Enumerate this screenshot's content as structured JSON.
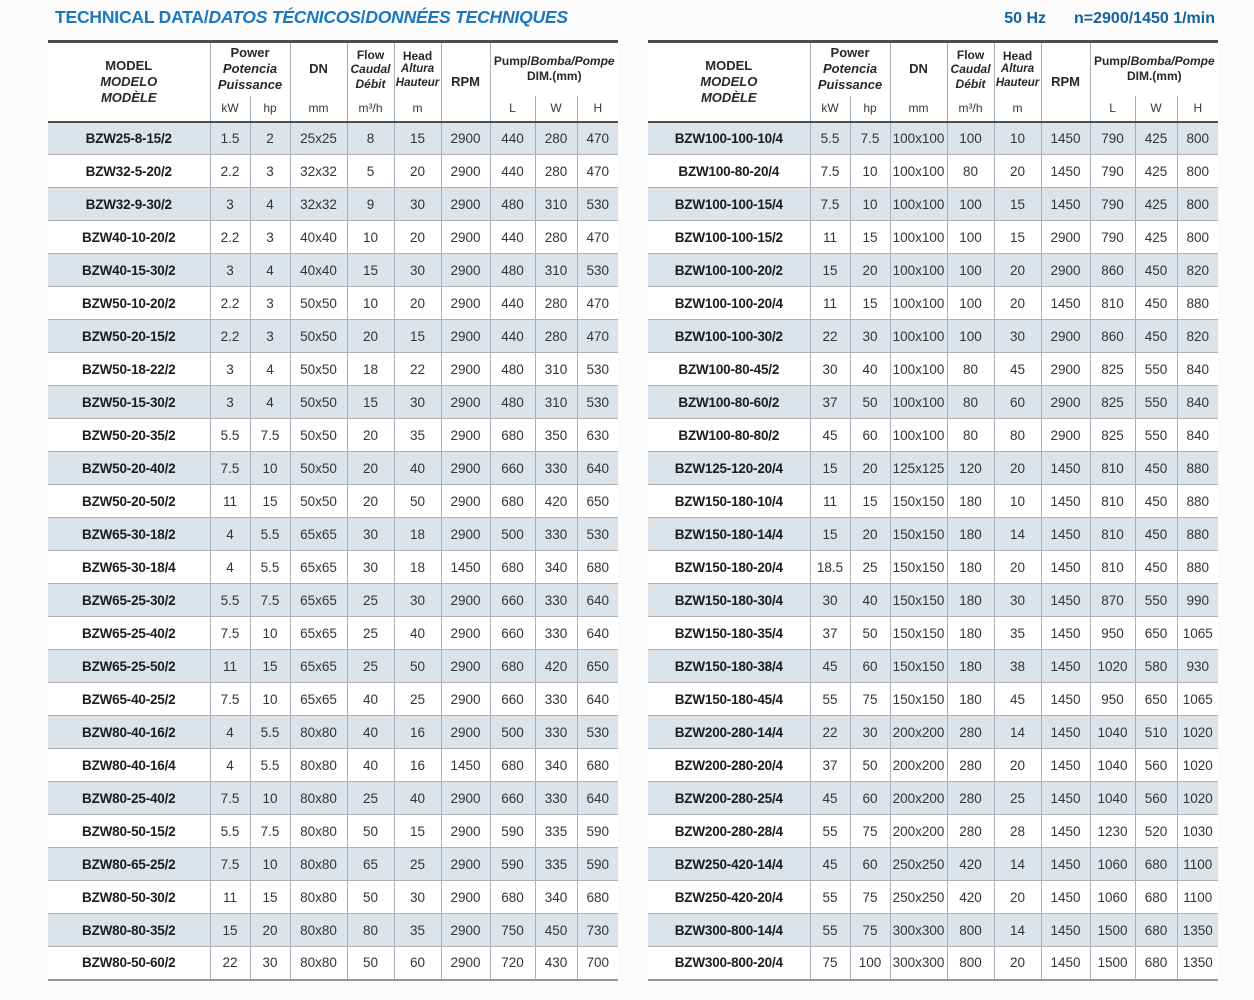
{
  "header": {
    "title": {
      "en": "TECHNICAL DATA",
      "sep": "/",
      "es": "DATOS TÉCNICOS",
      "fr": "DONNÉES TECHNIQUES"
    },
    "frequency": "50 Hz",
    "speed": "n=2900/1450 1/min"
  },
  "colors": {
    "title_blue": "#1b78bc",
    "freq_blue": "#13629a",
    "row_stripe": "#dce3e9",
    "grid_line": "#a9afb4",
    "heavy_line": "#4b4d50"
  },
  "table_header": {
    "model": [
      "MODEL",
      "MODELO",
      "MODÈLE"
    ],
    "power": [
      "Power",
      "Potencia",
      "Puissance"
    ],
    "dn": "DN",
    "flow": [
      "Flow",
      "Caudal",
      "Débit"
    ],
    "head": [
      "Head",
      "Altura",
      "Hauteur"
    ],
    "rpm": "RPM",
    "pump_dim": {
      "en": "Pump/",
      "other": "Bomba/Pompe",
      "dim": "DIM.(mm)"
    },
    "units": {
      "kw": "kW",
      "hp": "hp",
      "dn": "mm",
      "flow": "m³/h",
      "head": "m",
      "l": "L",
      "w": "W",
      "h": "H"
    }
  },
  "tables": [
    {
      "rows": [
        [
          "BZW25-8-15/2",
          "1.5",
          "2",
          "25x25",
          "8",
          "15",
          "2900",
          "440",
          "280",
          "470"
        ],
        [
          "BZW32-5-20/2",
          "2.2",
          "3",
          "32x32",
          "5",
          "20",
          "2900",
          "440",
          "280",
          "470"
        ],
        [
          "BZW32-9-30/2",
          "3",
          "4",
          "32x32",
          "9",
          "30",
          "2900",
          "480",
          "310",
          "530"
        ],
        [
          "BZW40-10-20/2",
          "2.2",
          "3",
          "40x40",
          "10",
          "20",
          "2900",
          "440",
          "280",
          "470"
        ],
        [
          "BZW40-15-30/2",
          "3",
          "4",
          "40x40",
          "15",
          "30",
          "2900",
          "480",
          "310",
          "530"
        ],
        [
          "BZW50-10-20/2",
          "2.2",
          "3",
          "50x50",
          "10",
          "20",
          "2900",
          "440",
          "280",
          "470"
        ],
        [
          "BZW50-20-15/2",
          "2.2",
          "3",
          "50x50",
          "20",
          "15",
          "2900",
          "440",
          "280",
          "470"
        ],
        [
          "BZW50-18-22/2",
          "3",
          "4",
          "50x50",
          "18",
          "22",
          "2900",
          "480",
          "310",
          "530"
        ],
        [
          "BZW50-15-30/2",
          "3",
          "4",
          "50x50",
          "15",
          "30",
          "2900",
          "480",
          "310",
          "530"
        ],
        [
          "BZW50-20-35/2",
          "5.5",
          "7.5",
          "50x50",
          "20",
          "35",
          "2900",
          "680",
          "350",
          "630"
        ],
        [
          "BZW50-20-40/2",
          "7.5",
          "10",
          "50x50",
          "20",
          "40",
          "2900",
          "660",
          "330",
          "640"
        ],
        [
          "BZW50-20-50/2",
          "11",
          "15",
          "50x50",
          "20",
          "50",
          "2900",
          "680",
          "420",
          "650"
        ],
        [
          "BZW65-30-18/2",
          "4",
          "5.5",
          "65x65",
          "30",
          "18",
          "2900",
          "500",
          "330",
          "530"
        ],
        [
          "BZW65-30-18/4",
          "4",
          "5.5",
          "65x65",
          "30",
          "18",
          "1450",
          "680",
          "340",
          "680"
        ],
        [
          "BZW65-25-30/2",
          "5.5",
          "7.5",
          "65x65",
          "25",
          "30",
          "2900",
          "660",
          "330",
          "640"
        ],
        [
          "BZW65-25-40/2",
          "7.5",
          "10",
          "65x65",
          "25",
          "40",
          "2900",
          "660",
          "330",
          "640"
        ],
        [
          "BZW65-25-50/2",
          "11",
          "15",
          "65x65",
          "25",
          "50",
          "2900",
          "680",
          "420",
          "650"
        ],
        [
          "BZW65-40-25/2",
          "7.5",
          "10",
          "65x65",
          "40",
          "25",
          "2900",
          "660",
          "330",
          "640"
        ],
        [
          "BZW80-40-16/2",
          "4",
          "5.5",
          "80x80",
          "40",
          "16",
          "2900",
          "500",
          "330",
          "530"
        ],
        [
          "BZW80-40-16/4",
          "4",
          "5.5",
          "80x80",
          "40",
          "16",
          "1450",
          "680",
          "340",
          "680"
        ],
        [
          "BZW80-25-40/2",
          "7.5",
          "10",
          "80x80",
          "25",
          "40",
          "2900",
          "660",
          "330",
          "640"
        ],
        [
          "BZW80-50-15/2",
          "5.5",
          "7.5",
          "80x80",
          "50",
          "15",
          "2900",
          "590",
          "335",
          "590"
        ],
        [
          "BZW80-65-25/2",
          "7.5",
          "10",
          "80x80",
          "65",
          "25",
          "2900",
          "590",
          "335",
          "590"
        ],
        [
          "BZW80-50-30/2",
          "11",
          "15",
          "80x80",
          "50",
          "30",
          "2900",
          "680",
          "340",
          "680"
        ],
        [
          "BZW80-80-35/2",
          "15",
          "20",
          "80x80",
          "80",
          "35",
          "2900",
          "750",
          "450",
          "730"
        ],
        [
          "BZW80-50-60/2",
          "22",
          "30",
          "80x80",
          "50",
          "60",
          "2900",
          "720",
          "430",
          "700"
        ]
      ]
    },
    {
      "rows": [
        [
          "BZW100-100-10/4",
          "5.5",
          "7.5",
          "100x100",
          "100",
          "10",
          "1450",
          "790",
          "425",
          "800"
        ],
        [
          "BZW100-80-20/4",
          "7.5",
          "10",
          "100x100",
          "80",
          "20",
          "1450",
          "790",
          "425",
          "800"
        ],
        [
          "BZW100-100-15/4",
          "7.5",
          "10",
          "100x100",
          "100",
          "15",
          "1450",
          "790",
          "425",
          "800"
        ],
        [
          "BZW100-100-15/2",
          "11",
          "15",
          "100x100",
          "100",
          "15",
          "2900",
          "790",
          "425",
          "800"
        ],
        [
          "BZW100-100-20/2",
          "15",
          "20",
          "100x100",
          "100",
          "20",
          "2900",
          "860",
          "450",
          "820"
        ],
        [
          "BZW100-100-20/4",
          "11",
          "15",
          "100x100",
          "100",
          "20",
          "1450",
          "810",
          "450",
          "880"
        ],
        [
          "BZW100-100-30/2",
          "22",
          "30",
          "100x100",
          "100",
          "30",
          "2900",
          "860",
          "450",
          "820"
        ],
        [
          "BZW100-80-45/2",
          "30",
          "40",
          "100x100",
          "80",
          "45",
          "2900",
          "825",
          "550",
          "840"
        ],
        [
          "BZW100-80-60/2",
          "37",
          "50",
          "100x100",
          "80",
          "60",
          "2900",
          "825",
          "550",
          "840"
        ],
        [
          "BZW100-80-80/2",
          "45",
          "60",
          "100x100",
          "80",
          "80",
          "2900",
          "825",
          "550",
          "840"
        ],
        [
          "BZW125-120-20/4",
          "15",
          "20",
          "125x125",
          "120",
          "20",
          "1450",
          "810",
          "450",
          "880"
        ],
        [
          "BZW150-180-10/4",
          "11",
          "15",
          "150x150",
          "180",
          "10",
          "1450",
          "810",
          "450",
          "880"
        ],
        [
          "BZW150-180-14/4",
          "15",
          "20",
          "150x150",
          "180",
          "14",
          "1450",
          "810",
          "450",
          "880"
        ],
        [
          "BZW150-180-20/4",
          "18.5",
          "25",
          "150x150",
          "180",
          "20",
          "1450",
          "810",
          "450",
          "880"
        ],
        [
          "BZW150-180-30/4",
          "30",
          "40",
          "150x150",
          "180",
          "30",
          "1450",
          "870",
          "550",
          "990"
        ],
        [
          "BZW150-180-35/4",
          "37",
          "50",
          "150x150",
          "180",
          "35",
          "1450",
          "950",
          "650",
          "1065"
        ],
        [
          "BZW150-180-38/4",
          "45",
          "60",
          "150x150",
          "180",
          "38",
          "1450",
          "1020",
          "580",
          "930"
        ],
        [
          "BZW150-180-45/4",
          "55",
          "75",
          "150x150",
          "180",
          "45",
          "1450",
          "950",
          "650",
          "1065"
        ],
        [
          "BZW200-280-14/4",
          "22",
          "30",
          "200x200",
          "280",
          "14",
          "1450",
          "1040",
          "510",
          "1020"
        ],
        [
          "BZW200-280-20/4",
          "37",
          "50",
          "200x200",
          "280",
          "20",
          "1450",
          "1040",
          "560",
          "1020"
        ],
        [
          "BZW200-280-25/4",
          "45",
          "60",
          "200x200",
          "280",
          "25",
          "1450",
          "1040",
          "560",
          "1020"
        ],
        [
          "BZW200-280-28/4",
          "55",
          "75",
          "200x200",
          "280",
          "28",
          "1450",
          "1230",
          "520",
          "1030"
        ],
        [
          "BZW250-420-14/4",
          "45",
          "60",
          "250x250",
          "420",
          "14",
          "1450",
          "1060",
          "680",
          "1100"
        ],
        [
          "BZW250-420-20/4",
          "55",
          "75",
          "250x250",
          "420",
          "20",
          "1450",
          "1060",
          "680",
          "1100"
        ],
        [
          "BZW300-800-14/4",
          "55",
          "75",
          "300x300",
          "800",
          "14",
          "1450",
          "1500",
          "680",
          "1350"
        ],
        [
          "BZW300-800-20/4",
          "75",
          "100",
          "300x300",
          "800",
          "20",
          "1450",
          "1500",
          "680",
          "1350"
        ]
      ]
    }
  ]
}
